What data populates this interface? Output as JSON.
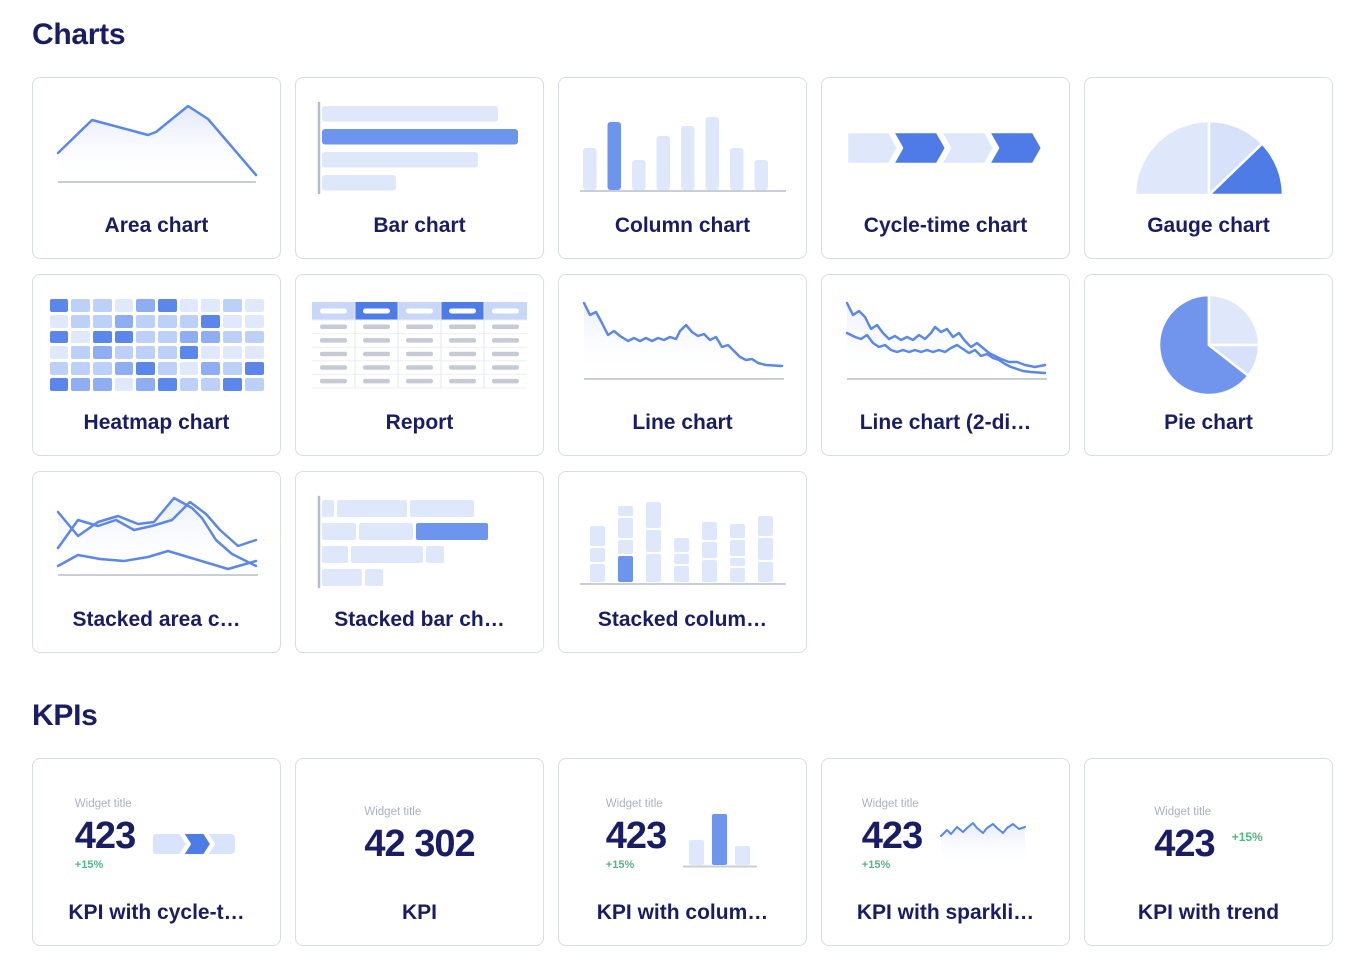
{
  "colors": {
    "heading_text": "#191d63",
    "card_border": "#d8dce5",
    "accent_blue": "#4d7ce6",
    "medium_blue": "#6e95ee",
    "light_blue": "#dfe7fb",
    "line_blue": "#5b87ec",
    "pie_blue": "#7195ed",
    "axis_gray": "#b6bcc8",
    "baseline_gray": "#c9cdd6",
    "muted_text": "#a9b1c2",
    "positive_green": "#50b884"
  },
  "sections": {
    "charts": {
      "title": "Charts",
      "cards": [
        {
          "label": "Area chart",
          "icon": "area-chart-icon"
        },
        {
          "label": "Bar chart",
          "icon": "bar-chart-icon"
        },
        {
          "label": "Column chart",
          "icon": "column-chart-icon"
        },
        {
          "label": "Cycle-time chart",
          "icon": "cycle-time-chart-icon"
        },
        {
          "label": "Gauge chart",
          "icon": "gauge-chart-icon"
        },
        {
          "label": "Heatmap chart",
          "icon": "heatmap-chart-icon"
        },
        {
          "label": "Report",
          "icon": "report-icon"
        },
        {
          "label": "Line chart",
          "icon": "line-chart-icon"
        },
        {
          "label": "Line chart (2-di…",
          "icon": "line-chart-2d-icon"
        },
        {
          "label": "Pie chart",
          "icon": "pie-chart-icon"
        },
        {
          "label": "Stacked area c…",
          "icon": "stacked-area-chart-icon"
        },
        {
          "label": "Stacked bar ch…",
          "icon": "stacked-bar-chart-icon"
        },
        {
          "label": "Stacked colum…",
          "icon": "stacked-column-chart-icon"
        }
      ]
    },
    "kpis": {
      "title": "KPIs",
      "cards": [
        {
          "label": "KPI with cycle-t…",
          "widget_title": "Widget title",
          "value": "423",
          "delta": "+15%",
          "icon": "kpi-cycle-time-icon"
        },
        {
          "label": "KPI",
          "widget_title": "Widget title",
          "value": "42 302"
        },
        {
          "label": "KPI with colum…",
          "widget_title": "Widget title",
          "value": "423",
          "delta": "+15%",
          "icon": "kpi-column-icon"
        },
        {
          "label": "KPI with sparkli…",
          "widget_title": "Widget title",
          "value": "423",
          "delta": "+15%",
          "icon": "kpi-sparkline-icon"
        },
        {
          "label": "KPI with trend",
          "widget_title": "Widget title",
          "value": "423",
          "delta": "+15%"
        }
      ]
    }
  },
  "heatmap": {
    "palette": [
      "#e0e8fc",
      "#bcd0f8",
      "#8fadf2",
      "#5b87ec"
    ],
    "rows": [
      [
        3,
        1,
        1,
        0,
        2,
        3,
        0,
        0,
        1,
        0
      ],
      [
        0,
        1,
        1,
        2,
        1,
        1,
        1,
        3,
        0,
        0
      ],
      [
        3,
        0,
        3,
        3,
        1,
        1,
        2,
        2,
        1,
        1
      ],
      [
        0,
        1,
        2,
        1,
        1,
        1,
        3,
        0,
        0,
        0
      ],
      [
        1,
        1,
        1,
        2,
        3,
        1,
        0,
        2,
        1,
        3
      ],
      [
        3,
        2,
        2,
        0,
        2,
        3,
        1,
        1,
        3,
        1
      ]
    ]
  }
}
